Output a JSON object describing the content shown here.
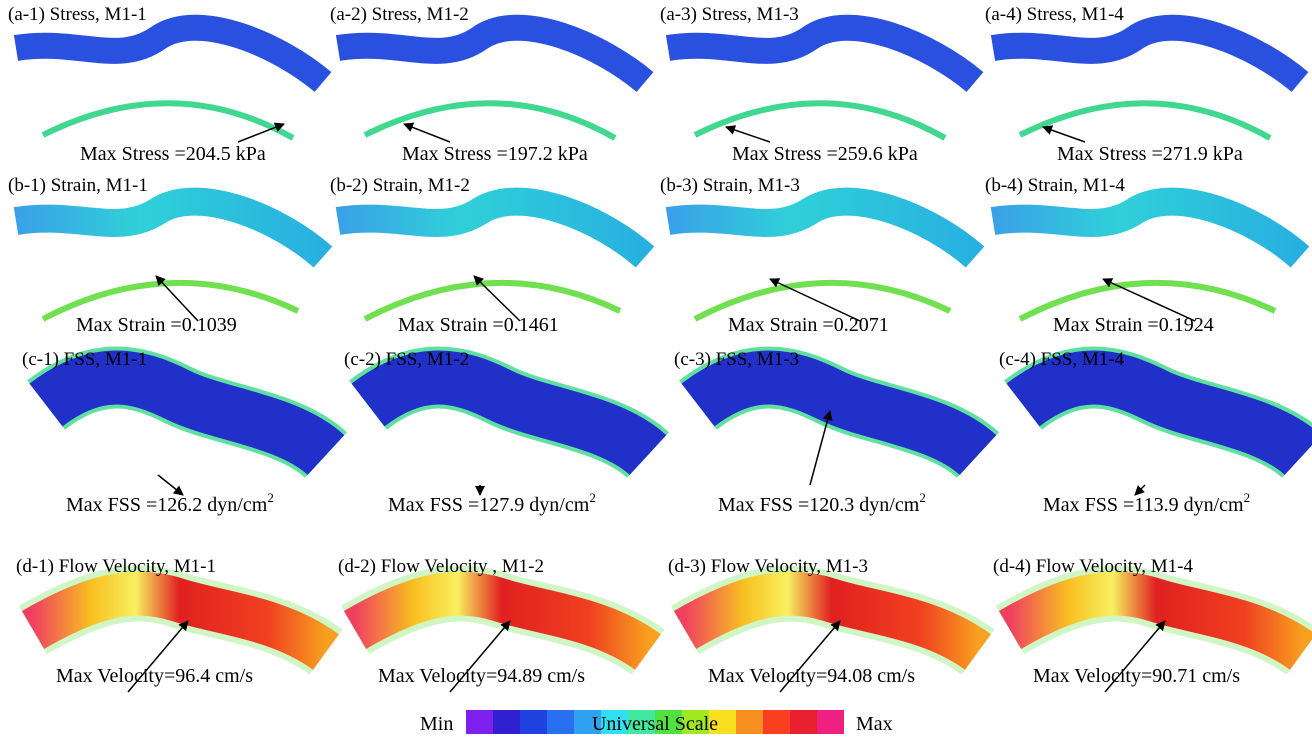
{
  "panels": [
    {
      "title": "(a-1) Stress, M1-1",
      "note": "Max Stress =204.5 kPa"
    },
    {
      "title": "(a-2) Stress, M1-2",
      "note": "Max Stress =197.2 kPa"
    },
    {
      "title": "(a-3) Stress, M1-3",
      "note": "Max Stress =259.6 kPa"
    },
    {
      "title": "(a-4) Stress, M1-4",
      "note": "Max Stress =271.9 kPa"
    },
    {
      "title": "(b-1) Strain, M1-1",
      "note": "Max Strain =0.1039"
    },
    {
      "title": "(b-2) Strain, M1-2",
      "note": "Max Strain =0.1461"
    },
    {
      "title": "(b-3) Strain, M1-3",
      "note": "Max Strain =0.2071"
    },
    {
      "title": "(b-4) Strain, M1-4",
      "note": "Max Strain =0.1924"
    },
    {
      "title": "(c-1) FSS, M1-1",
      "note": "Max FSS =126.2 dyn/cm",
      "note_sup": "2"
    },
    {
      "title": "(c-2) FSS, M1-2",
      "note": "Max FSS =127.9 dyn/cm",
      "note_sup": "2"
    },
    {
      "title": "(c-3) FSS, M1-3",
      "note": "Max FSS =120.3 dyn/cm",
      "note_sup": "2"
    },
    {
      "title": "(c-4) FSS, M1-4",
      "note": "Max FSS =113.9 dyn/cm",
      "note_sup": "2"
    },
    {
      "title": "(d-1) Flow Velocity, M1-1",
      "note": "Max Velocity=96.4 cm/s"
    },
    {
      "title": "(d-2) Flow Velocity , M1-2",
      "note": "Max Velocity=94.89 cm/s"
    },
    {
      "title": "(d-3) Flow Velocity, M1-3",
      "note": "Max Velocity=94.08 cm/s"
    },
    {
      "title": "(d-4) Flow Velocity, M1-4",
      "note": "Max Velocity=90.71 cm/s"
    }
  ],
  "scale": {
    "min": "Min",
    "label": "Universal Scale",
    "max": "Max"
  }
}
